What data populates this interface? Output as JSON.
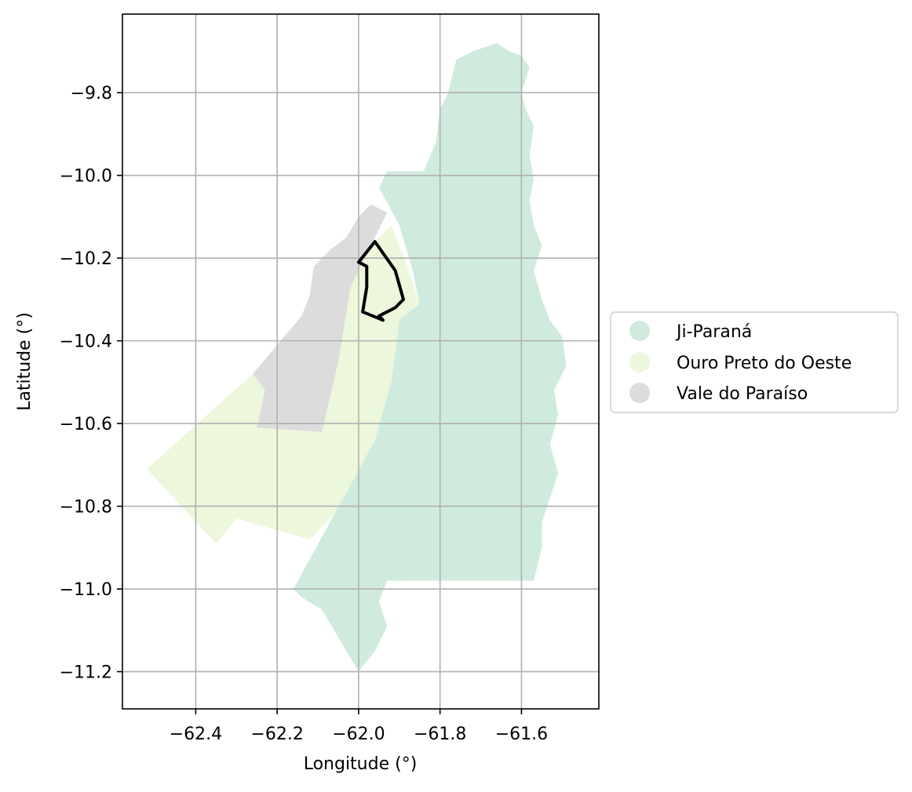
{
  "map": {
    "xlabel": "Longitude (°)",
    "ylabel": "Latitude (°)",
    "x_ticks": [
      "−62.4",
      "−62.2",
      "−62.0",
      "−61.8",
      "−61.6"
    ],
    "y_ticks": [
      "−9.8",
      "−10.0",
      "−10.2",
      "−10.4",
      "−10.6",
      "−10.8",
      "−11.0",
      "−11.2"
    ],
    "legend": [
      {
        "label": "Ji-Paraná",
        "color": "#cfebdd"
      },
      {
        "label": "Ouro Preto do Oeste",
        "color": "#edf7dc"
      },
      {
        "label": "Vale do Paraíso",
        "color": "#dcdcdc"
      }
    ],
    "outline_color": "#000000",
    "grid": true,
    "legend_position": "right-center"
  },
  "chart_data": {
    "type": "map",
    "xlabel": "Longitude (°)",
    "ylabel": "Latitude (°)",
    "xlim": [
      -62.58,
      -61.41
    ],
    "ylim": [
      -11.29,
      -9.61
    ],
    "regions": [
      {
        "name": "Ji-Paraná",
        "color": "#cfebdd",
        "polygon": [
          [
            -61.76,
            -9.72
          ],
          [
            -61.72,
            -9.7
          ],
          [
            -61.66,
            -9.68
          ],
          [
            -61.63,
            -9.7
          ],
          [
            -61.6,
            -9.71
          ],
          [
            -61.58,
            -9.74
          ],
          [
            -61.6,
            -9.8
          ],
          [
            -61.59,
            -9.84
          ],
          [
            -61.57,
            -9.88
          ],
          [
            -61.58,
            -9.95
          ],
          [
            -61.57,
            -10.01
          ],
          [
            -61.58,
            -10.06
          ],
          [
            -61.57,
            -10.12
          ],
          [
            -61.55,
            -10.17
          ],
          [
            -61.57,
            -10.23
          ],
          [
            -61.55,
            -10.3
          ],
          [
            -61.53,
            -10.35
          ],
          [
            -61.5,
            -10.39
          ],
          [
            -61.49,
            -10.46
          ],
          [
            -61.52,
            -10.52
          ],
          [
            -61.51,
            -10.58
          ],
          [
            -61.53,
            -10.65
          ],
          [
            -61.51,
            -10.72
          ],
          [
            -61.53,
            -10.78
          ],
          [
            -61.55,
            -10.84
          ],
          [
            -61.55,
            -10.9
          ],
          [
            -61.57,
            -10.98
          ],
          [
            -61.67,
            -10.98
          ],
          [
            -61.76,
            -10.98
          ],
          [
            -61.85,
            -10.98
          ],
          [
            -61.93,
            -10.98
          ],
          [
            -61.95,
            -11.03
          ],
          [
            -61.93,
            -11.09
          ],
          [
            -61.96,
            -11.15
          ],
          [
            -62.0,
            -11.2
          ],
          [
            -62.03,
            -11.15
          ],
          [
            -62.06,
            -11.1
          ],
          [
            -62.09,
            -11.05
          ],
          [
            -62.14,
            -11.02
          ],
          [
            -62.16,
            -11.0
          ],
          [
            -62.06,
            -10.82
          ],
          [
            -61.96,
            -10.64
          ],
          [
            -61.92,
            -10.5
          ],
          [
            -61.9,
            -10.35
          ],
          [
            -61.85,
            -10.31
          ],
          [
            -61.87,
            -10.22
          ],
          [
            -61.9,
            -10.12
          ],
          [
            -61.95,
            -10.03
          ],
          [
            -61.93,
            -9.99
          ],
          [
            -61.84,
            -9.99
          ],
          [
            -61.81,
            -9.92
          ],
          [
            -61.8,
            -9.84
          ],
          [
            -61.78,
            -9.8
          ]
        ]
      },
      {
        "name": "Ouro Preto do Oeste",
        "color": "#edf7dc",
        "polygon": [
          [
            -61.92,
            -10.12
          ],
          [
            -61.88,
            -10.22
          ],
          [
            -61.85,
            -10.31
          ],
          [
            -61.9,
            -10.35
          ],
          [
            -61.92,
            -10.5
          ],
          [
            -61.96,
            -10.64
          ],
          [
            -62.06,
            -10.82
          ],
          [
            -62.12,
            -10.88
          ],
          [
            -62.3,
            -10.83
          ],
          [
            -62.35,
            -10.89
          ],
          [
            -62.52,
            -10.71
          ],
          [
            -62.26,
            -10.48
          ],
          [
            -62.1,
            -10.33
          ],
          [
            -62.0,
            -10.2
          ],
          [
            -61.95,
            -10.15
          ]
        ]
      },
      {
        "name": "Vale do Paraíso",
        "color": "#dcdcdc",
        "polygon": [
          [
            -61.97,
            -10.07
          ],
          [
            -61.93,
            -10.09
          ],
          [
            -62.02,
            -10.27
          ],
          [
            -62.05,
            -10.45
          ],
          [
            -62.09,
            -10.62
          ],
          [
            -62.25,
            -10.61
          ],
          [
            -62.23,
            -10.52
          ],
          [
            -62.26,
            -10.48
          ],
          [
            -62.14,
            -10.34
          ],
          [
            -62.12,
            -10.29
          ],
          [
            -62.11,
            -10.22
          ],
          [
            -62.07,
            -10.18
          ],
          [
            -62.03,
            -10.15
          ],
          [
            -62.0,
            -10.1
          ]
        ]
      }
    ],
    "outline": {
      "color": "#000000",
      "polygon": [
        [
          -61.96,
          -10.16
        ],
        [
          -61.91,
          -10.23
        ],
        [
          -61.89,
          -10.3
        ],
        [
          -61.91,
          -10.32
        ],
        [
          -61.93,
          -10.33
        ],
        [
          -61.95,
          -10.34
        ],
        [
          -61.94,
          -10.35
        ],
        [
          -61.99,
          -10.33
        ],
        [
          -61.98,
          -10.27
        ],
        [
          -61.98,
          -10.22
        ],
        [
          -62.0,
          -10.21
        ]
      ]
    }
  }
}
